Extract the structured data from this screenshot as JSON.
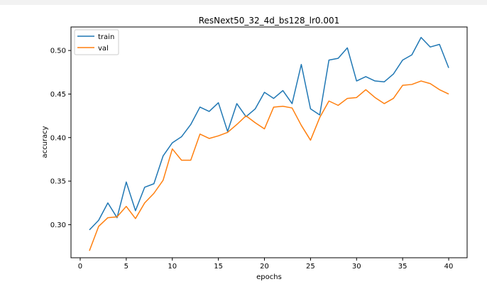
{
  "chart_data": {
    "type": "line",
    "title": "ResNext50_32_4d_bs128_lr0.001",
    "xlabel": "epochs",
    "ylabel": "accuracy",
    "xlim": [
      -1,
      42
    ],
    "ylim": [
      0.262,
      0.527
    ],
    "xticks": [
      0,
      5,
      10,
      15,
      20,
      25,
      30,
      35,
      40
    ],
    "yticks": [
      0.3,
      0.35,
      0.4,
      0.45,
      0.5
    ],
    "ytick_labels": [
      "0.30",
      "0.35",
      "0.40",
      "0.45",
      "0.50"
    ],
    "grid": false,
    "legend_position": "upper-left",
    "x": [
      1,
      2,
      3,
      4,
      5,
      6,
      7,
      8,
      9,
      10,
      11,
      12,
      13,
      14,
      15,
      16,
      17,
      18,
      19,
      20,
      21,
      22,
      23,
      24,
      25,
      26,
      27,
      28,
      29,
      30,
      31,
      32,
      33,
      34,
      35,
      36,
      37,
      38,
      39,
      40
    ],
    "series": [
      {
        "name": "train",
        "color": "#1f77b4",
        "values": [
          0.294,
          0.305,
          0.325,
          0.308,
          0.349,
          0.316,
          0.343,
          0.347,
          0.379,
          0.394,
          0.401,
          0.415,
          0.435,
          0.43,
          0.44,
          0.407,
          0.439,
          0.424,
          0.433,
          0.452,
          0.445,
          0.454,
          0.439,
          0.484,
          0.433,
          0.426,
          0.489,
          0.491,
          0.503,
          0.465,
          0.47,
          0.465,
          0.464,
          0.473,
          0.489,
          0.495,
          0.515,
          0.504,
          0.507,
          0.48
        ]
      },
      {
        "name": "val",
        "color": "#ff7f0e",
        "values": [
          0.27,
          0.298,
          0.308,
          0.309,
          0.321,
          0.307,
          0.325,
          0.336,
          0.351,
          0.387,
          0.374,
          0.374,
          0.404,
          0.399,
          0.402,
          0.406,
          0.415,
          0.425,
          0.417,
          0.41,
          0.435,
          0.436,
          0.434,
          0.414,
          0.397,
          0.423,
          0.442,
          0.437,
          0.445,
          0.446,
          0.455,
          0.446,
          0.439,
          0.445,
          0.46,
          0.461,
          0.465,
          0.462,
          0.455,
          0.45
        ]
      }
    ]
  }
}
